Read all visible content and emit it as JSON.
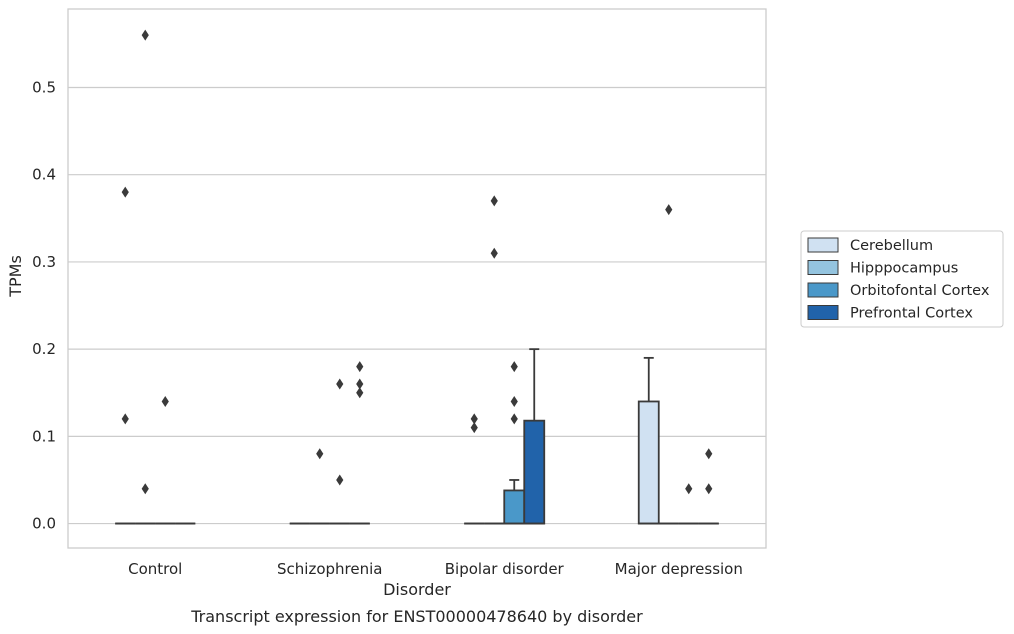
{
  "caption": "Transcript expression for ENST00000478640 by disorder",
  "chart_data": {
    "type": "boxplot",
    "title": "",
    "xlabel": "Disorder",
    "ylabel": "TPMs",
    "categories": [
      "Control",
      "Schizophrenia",
      "Bipolar disorder",
      "Major depression"
    ],
    "ylim": [
      -0.028,
      0.59
    ],
    "yticks": [
      0.0,
      0.1,
      0.2,
      0.3,
      0.4,
      0.5
    ],
    "ytick_labels": [
      "0.0",
      "0.1",
      "0.2",
      "0.3",
      "0.4",
      "0.5"
    ],
    "grid": "horizontal",
    "legend_position": "right",
    "series": [
      {
        "name": "Cerebellum",
        "color": "#d0e1f2",
        "boxes": [
          {
            "q1": 0.0,
            "median": 0.0,
            "q3": 0.0,
            "whisker_low": 0.0,
            "whisker_high": 0.0,
            "outliers": [
              0.38,
              0.12
            ]
          },
          {
            "q1": 0.0,
            "median": 0.0,
            "q3": 0.0,
            "whisker_low": 0.0,
            "whisker_high": 0.0,
            "outliers": []
          },
          {
            "q1": 0.0,
            "median": 0.0,
            "q3": 0.0,
            "whisker_low": 0.0,
            "whisker_high": 0.0,
            "outliers": [
              0.12,
              0.11
            ]
          },
          {
            "q1": 0.0,
            "median": 0.0,
            "q3": 0.14,
            "whisker_low": 0.0,
            "whisker_high": 0.19,
            "outliers": []
          }
        ]
      },
      {
        "name": "Hipppocampus",
        "color": "#94c4df",
        "boxes": [
          {
            "q1": 0.0,
            "median": 0.0,
            "q3": 0.0,
            "whisker_low": 0.0,
            "whisker_high": 0.0,
            "outliers": [
              0.56,
              0.04
            ]
          },
          {
            "q1": 0.0,
            "median": 0.0,
            "q3": 0.0,
            "whisker_low": 0.0,
            "whisker_high": 0.0,
            "outliers": [
              0.08
            ]
          },
          {
            "q1": 0.0,
            "median": 0.0,
            "q3": 0.0,
            "whisker_low": 0.0,
            "whisker_high": 0.0,
            "outliers": [
              0.37,
              0.31
            ]
          },
          {
            "q1": 0.0,
            "median": 0.0,
            "q3": 0.0,
            "whisker_low": 0.0,
            "whisker_high": 0.0,
            "outliers": [
              0.36
            ]
          }
        ]
      },
      {
        "name": "Orbitofontal Cortex",
        "color": "#4a98c9",
        "boxes": [
          {
            "q1": 0.0,
            "median": 0.0,
            "q3": 0.0,
            "whisker_low": 0.0,
            "whisker_high": 0.0,
            "outliers": [
              0.14
            ]
          },
          {
            "q1": 0.0,
            "median": 0.0,
            "q3": 0.0,
            "whisker_low": 0.0,
            "whisker_high": 0.0,
            "outliers": [
              0.16,
              0.05
            ]
          },
          {
            "q1": 0.0,
            "median": 0.0,
            "q3": 0.038,
            "whisker_low": 0.0,
            "whisker_high": 0.05,
            "outliers": [
              0.18,
              0.14,
              0.12
            ]
          },
          {
            "q1": 0.0,
            "median": 0.0,
            "q3": 0.0,
            "whisker_low": 0.0,
            "whisker_high": 0.0,
            "outliers": [
              0.04
            ]
          }
        ]
      },
      {
        "name": "Prefrontal Cortex",
        "color": "#2163aa",
        "boxes": [
          {
            "q1": 0.0,
            "median": 0.0,
            "q3": 0.0,
            "whisker_low": 0.0,
            "whisker_high": 0.0,
            "outliers": []
          },
          {
            "q1": 0.0,
            "median": 0.0,
            "q3": 0.0,
            "whisker_low": 0.0,
            "whisker_high": 0.0,
            "outliers": [
              0.18,
              0.16,
              0.15
            ]
          },
          {
            "q1": 0.0,
            "median": 0.0,
            "q3": 0.118,
            "whisker_low": 0.0,
            "whisker_high": 0.2,
            "outliers": []
          },
          {
            "q1": 0.0,
            "median": 0.0,
            "q3": 0.0,
            "whisker_low": 0.0,
            "whisker_high": 0.0,
            "outliers": [
              0.08,
              0.04
            ]
          }
        ]
      }
    ]
  },
  "colors": {
    "grid": "#cccccc",
    "frame": "#cccccc",
    "line": "#3a3a3a",
    "legend_border": "#cccccc"
  }
}
